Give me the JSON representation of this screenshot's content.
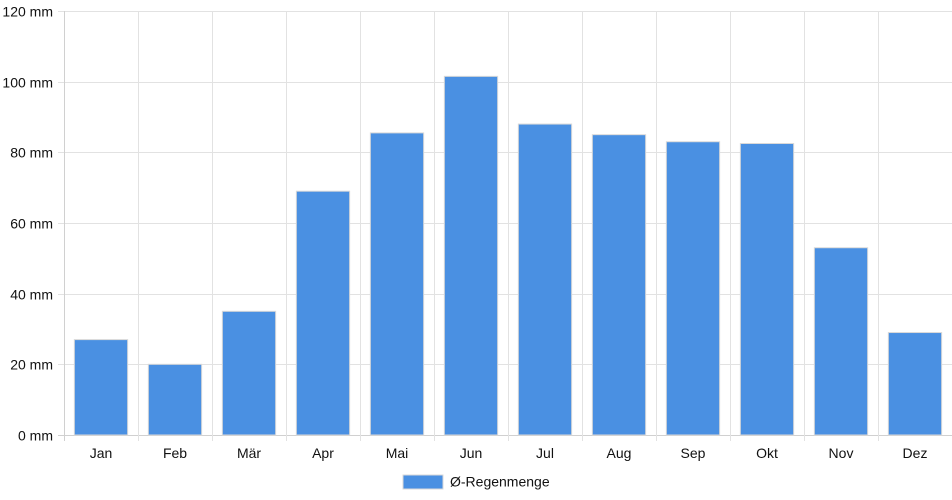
{
  "chart_data": {
    "type": "bar",
    "categories": [
      "Jan",
      "Feb",
      "Mär",
      "Apr",
      "Mai",
      "Jun",
      "Jul",
      "Aug",
      "Sep",
      "Okt",
      "Nov",
      "Dez"
    ],
    "series": [
      {
        "name": "Ø-Regenmenge",
        "values": [
          27,
          20,
          35,
          69,
          85.5,
          101.5,
          88,
          85,
          83,
          82.5,
          53,
          29
        ],
        "color": "#4a90e2"
      }
    ],
    "y_tick_labels": [
      "0 mm",
      "20 mm",
      "40 mm",
      "60 mm",
      "80 mm",
      "100 mm",
      "120 mm"
    ],
    "y_ticks": [
      0,
      20,
      40,
      60,
      80,
      100,
      120
    ],
    "ylim": [
      0,
      120
    ],
    "grid": true,
    "legend_position": "bottom"
  },
  "colors": {
    "bar": "#4a90e2",
    "bar_border": "#d9d9d9",
    "grid": "#e2e2e2",
    "axis": "#d0d0d0"
  }
}
